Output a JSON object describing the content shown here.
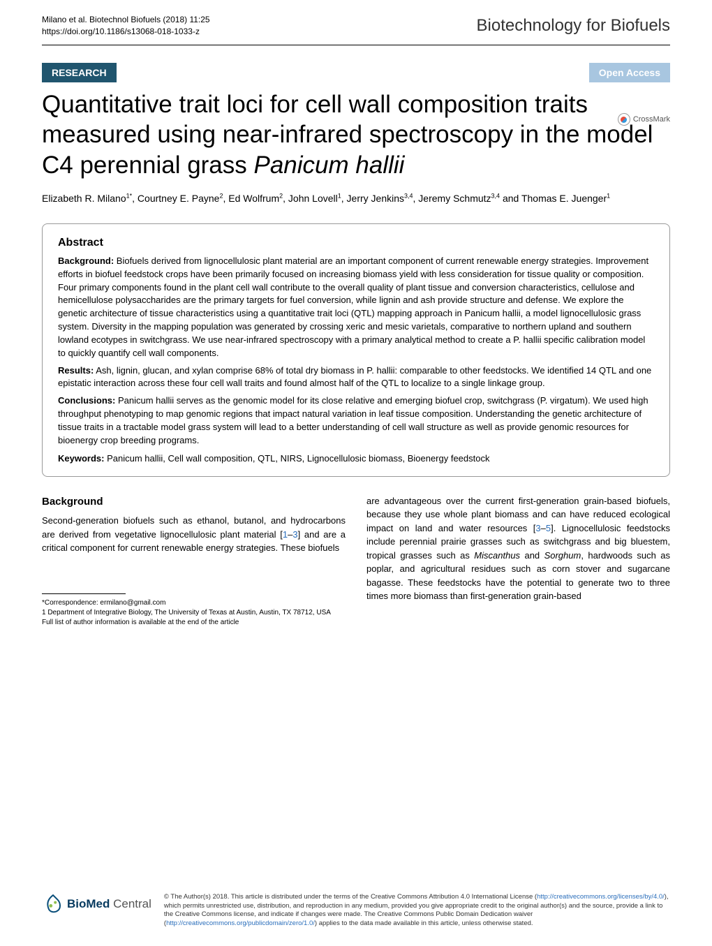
{
  "header": {
    "citation_line1": "Milano et al. Biotechnol Biofuels  (2018) 11:25",
    "citation_line2": "https://doi.org/10.1186/s13068-018-1033-z",
    "journal_name": "Biotechnology for Biofuels"
  },
  "badges": {
    "research": "RESEARCH",
    "open_access": "Open Access",
    "crossmark": "CrossMark"
  },
  "title_parts": {
    "line1": "Quantitative trait loci for cell wall composition traits measured using near-infrared spectroscopy in the model C4 perennial grass ",
    "italic": "Panicum hallii"
  },
  "authors_html": "Elizabeth R. Milano<sup>1*</sup>, Courtney E. Payne<sup>2</sup>, Ed Wolfrum<sup>2</sup>, John Lovell<sup>1</sup>, Jerry Jenkins<sup>3,4</sup>, Jeremy Schmutz<sup>3,4</sup> and Thomas E. Juenger<sup>1</sup>",
  "abstract": {
    "heading": "Abstract",
    "background_label": "Background:",
    "background_text": "  Biofuels derived from lignocellulosic plant material are an important component of current renewable energy strategies. Improvement efforts in biofuel feedstock crops have been primarily focused on increasing biomass yield with less consideration for tissue quality or composition. Four primary components found in the plant cell wall contribute to the overall quality of plant tissue and conversion characteristics, cellulose and hemicellulose polysaccharides are the primary targets for fuel conversion, while lignin and ash provide structure and defense. We explore the genetic architecture of tissue characteristics using a quantitative trait loci (QTL) mapping approach in Panicum hallii, a model lignocellulosic grass system. Diversity in the mapping population was generated by crossing xeric and mesic varietals, comparative to northern upland and southern lowland ecotypes in switchgrass. We use near-infrared spectroscopy with a primary analytical method to create a P. hallii specific calibration model to quickly quantify cell wall components.",
    "results_label": "Results:",
    "results_text": "  Ash, lignin, glucan, and xylan comprise 68% of total dry biomass in P. hallii: comparable to other feedstocks. We identified 14 QTL and one epistatic interaction across these four cell wall traits and found almost half of the QTL to localize to a single linkage group.",
    "conclusions_label": "Conclusions:",
    "conclusions_text": "  Panicum hallii serves as the genomic model for its close relative and emerging biofuel crop, switchgrass (P. virgatum). We used high throughput phenotyping to map genomic regions that impact natural variation in leaf tissue composition. Understanding the genetic architecture of tissue traits in a tractable model grass system will lead to a better understanding of cell wall structure as well as provide genomic resources for bioenergy crop breeding programs.",
    "keywords_label": "Keywords:",
    "keywords_text": "  Panicum hallii, Cell wall composition, QTL, NIRS, Lignocellulosic biomass, Bioenergy feedstock"
  },
  "body": {
    "background_heading": "Background",
    "col1_p1_a": "Second-generation biofuels such as ethanol, butanol, and hydrocarbons are derived from vegetative lignocellulosic plant material [",
    "col1_cite1": "1",
    "col1_dash": "–",
    "col1_cite2": "3",
    "col1_p1_b": "] and are a critical component for current renewable energy strategies. These biofuels",
    "col2_p1_a": "are advantageous over the current first-generation grain-based biofuels, because they use whole plant biomass and can have reduced ecological impact on land and water resources [",
    "col2_cite1": "3",
    "col2_dash": "–",
    "col2_cite2": "5",
    "col2_p1_b": "]. Lignocellulosic feedstocks include perennial prairie grasses such as switchgrass and big bluestem, tropical grasses such as ",
    "col2_ital1": "Miscanthus",
    "col2_p1_c": " and ",
    "col2_ital2": "Sorghum",
    "col2_p1_d": ", hardwoods such as poplar, and agricultural residues such as corn stover and sugarcane bagasse. These feedstocks have the potential to generate two to three times more biomass than first-generation grain-based"
  },
  "footnotes": {
    "correspondence": "*Correspondence:  ermilano@gmail.com",
    "affiliation": "1 Department of Integrative Biology, The University of Texas at Austin, Austin, TX 78712, USA",
    "fulllist": "Full list of author information is available at the end of the article"
  },
  "footer": {
    "logo_biomed": "BioMed",
    "logo_central": " Central",
    "license_text": "© The Author(s) 2018. This article is distributed under the terms of the Creative Commons Attribution 4.0 International License (",
    "license_url1": "http://creativecommons.org/licenses/by/4.0/",
    "license_mid": "), which permits unrestricted use, distribution, and reproduction in any medium, provided you give appropriate credit to the original author(s) and the source, provide a link to the Creative Commons license, and indicate if changes were made. The Creative Commons Public Domain Dedication waiver (",
    "license_url2": "http://creativecommons.org/publicdomain/zero/1.0/",
    "license_end": ") applies to the data made available in this article, unless otherwise stated."
  },
  "colors": {
    "research_bg": "#20556e",
    "openaccess_bg": "#a8c6e0",
    "link_color": "#2a6ebb",
    "biomed_color": "#073a5f"
  }
}
